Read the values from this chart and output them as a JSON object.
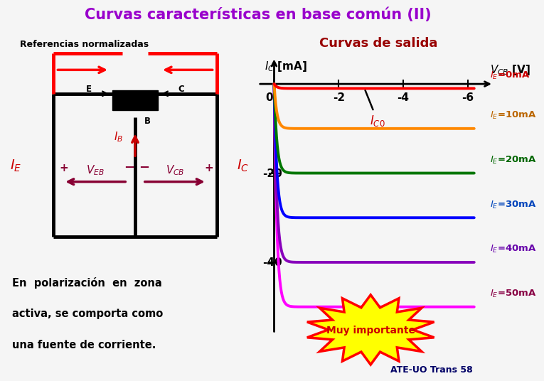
{
  "title": "Curvas características en base común (II)",
  "title_color": "#9900CC",
  "bg_color": "#F5F5F5",
  "subtitle_left": "Referencias normalizadas",
  "subtitle_right": "Curvas de salida",
  "subtitle_right_color": "#990000",
  "curves": [
    {
      "IE": 50,
      "IC_flat": -50,
      "color": "#FF00FF",
      "label": "I_E=50mA",
      "label_color": "#880044"
    },
    {
      "IE": 40,
      "IC_flat": -40,
      "color": "#8800BB",
      "label": "I_E=40mA",
      "label_color": "#6600AA"
    },
    {
      "IE": 30,
      "IC_flat": -30,
      "color": "#0000FF",
      "label": "I_E=30mA",
      "label_color": "#0044BB"
    },
    {
      "IE": 20,
      "IC_flat": -20,
      "color": "#007700",
      "label": "I_E=20mA",
      "label_color": "#006600"
    },
    {
      "IE": 10,
      "IC_flat": -10,
      "color": "#FF8800",
      "label": "I_E=10mA",
      "label_color": "#BB6600"
    },
    {
      "IE": 0,
      "IC_flat": -1,
      "color": "#FF0000",
      "label": "I_E=0mA",
      "label_color": "#CC0000"
    }
  ],
  "bottom_text_line1": "En  polarización  en  zona",
  "bottom_text_line2": "activa, se comporta como",
  "bottom_text_line3": "una fuente de corriente.",
  "bottom_text_color": "#000000",
  "muy_importante": "Muy importante",
  "footer": "ATE-UO Trans 58",
  "footer_color": "#000066",
  "circuit_color": "#000000",
  "red_color": "#CC0000",
  "dark_red": "#880033"
}
